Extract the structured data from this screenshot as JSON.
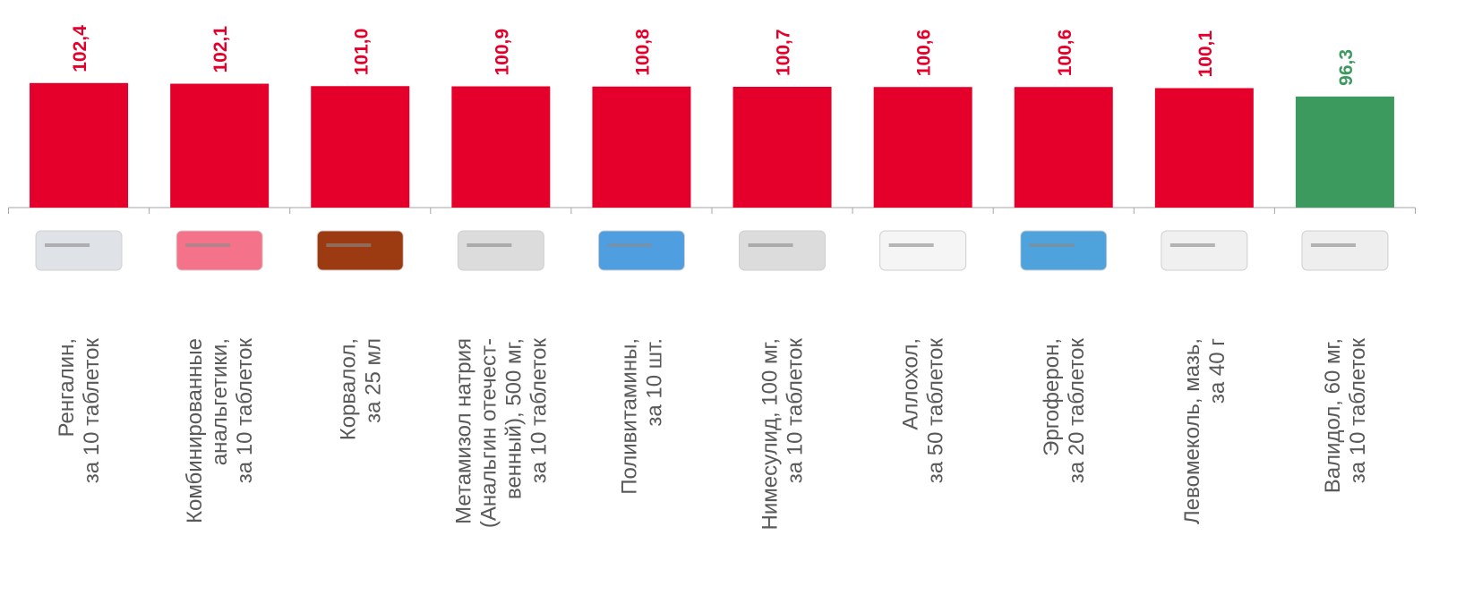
{
  "chart_data": {
    "type": "bar",
    "categories": [
      "Ренгалин,\nза 10 таблеток",
      "Комбинированные\nанальгетики,\nза 10 таблеток",
      "Корвалол,\nза 25 мл",
      "Метамизол натрия\n(Анальгин отечест-\nвенный), 500 мг,\nза 10 таблеток",
      "Поливитамины,\nза 10 шт.",
      "Нимесулид, 100 мг,\nза 10 таблеток",
      "Аллохол,\nза 50 таблеток",
      "Эргоферон,\nза 20 таблеток",
      "Левомеколь, мазь,\nза 40 г",
      "Валидол, 60 мг,\nза 10 таблеток"
    ],
    "values": [
      102.4,
      102.1,
      101.0,
      100.9,
      100.8,
      100.7,
      100.6,
      100.6,
      100.1,
      96.3
    ],
    "value_labels": [
      "102,4",
      "102,1",
      "101,0",
      "100,9",
      "100,8",
      "100,7",
      "100,6",
      "100,6",
      "100,1",
      "96,3"
    ],
    "colors": [
      "#e4002b",
      "#e4002b",
      "#e4002b",
      "#e4002b",
      "#e4002b",
      "#e4002b",
      "#e4002b",
      "#e4002b",
      "#e4002b",
      "#3d9a5f"
    ],
    "ylim": [
      46,
      140
    ]
  }
}
